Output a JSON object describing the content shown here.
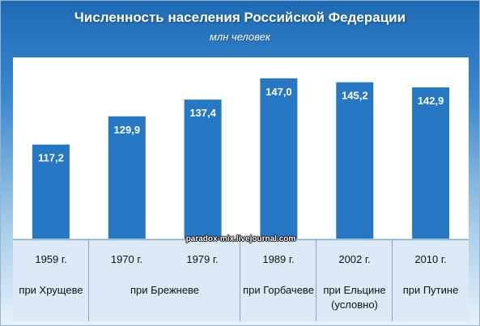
{
  "chart_data": {
    "type": "bar",
    "title": "Численность населения Российской Федерации",
    "subtitle": "млн человек",
    "categories": [
      "1959 г.",
      "1970 г.",
      "1979 г.",
      "1989 г.",
      "2002 г.",
      "2010 г."
    ],
    "values": [
      117.2,
      129.9,
      137.4,
      147.0,
      145.2,
      142.9
    ],
    "value_labels": [
      "117,2",
      "129,9",
      "137,4",
      "147,0",
      "145,2",
      "142,9"
    ],
    "groups": [
      {
        "label": "при Хрущеве",
        "span": 1
      },
      {
        "label": "при Брежневе",
        "span": 2
      },
      {
        "label": "при Горбачеве",
        "span": 1
      },
      {
        "label": "при Ельцине (условно)",
        "span": 1
      },
      {
        "label": "при Путине",
        "span": 1
      }
    ],
    "colors": {
      "bar": "#2778c4"
    }
  },
  "watermark": "paradox-mix.livejournal.com"
}
